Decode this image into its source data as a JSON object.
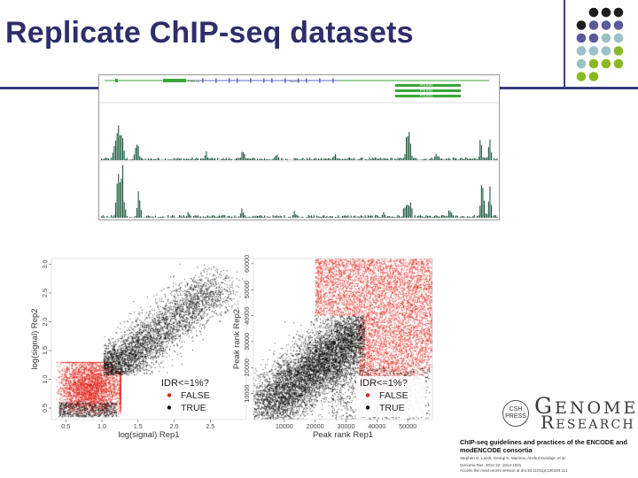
{
  "slide": {
    "title": "Replicate ChIP-seq datasets",
    "accent_color": "#2e2e6a",
    "rule_color": "#3d3d80"
  },
  "genome_browser": {
    "gene_labels": [
      "PHETA",
      "ACO2",
      "POLR3H",
      "POLR3H",
      "POLR3H"
    ],
    "track_color": "#1f5a3f",
    "gene_color": "#3aa53a"
  },
  "scatter_signal": {
    "type": "scatter",
    "xlabel": "log(signal) Rep1",
    "ylabel": "log(signal) Rep2",
    "x_ticks": [
      "0.5",
      "1.0",
      "1.5",
      "2.0",
      "2.5"
    ],
    "y_ticks": [
      "0.5",
      "1.0",
      "1.5",
      "2.0",
      "2.5",
      "3.0"
    ],
    "xlim": [
      0.3,
      3.0
    ],
    "ylim": [
      0.3,
      3.1
    ],
    "legend_title": "IDR<=1%?",
    "legend": [
      {
        "label": "FALSE",
        "color": "#e0241b"
      },
      {
        "label": "TRUE",
        "color": "#000000"
      }
    ]
  },
  "scatter_rank": {
    "type": "scatter",
    "xlabel": "Peak rank Rep1",
    "ylabel": "Peak rank Rep2",
    "x_ticks": [
      "10000",
      "20000",
      "30000",
      "40000",
      "50000"
    ],
    "y_ticks": [
      "10000",
      "20000",
      "30000",
      "40000",
      "50000",
      "60000"
    ],
    "xlim": [
      0,
      58000
    ],
    "ylim": [
      0,
      62000
    ],
    "legend_title": "IDR<=1%?",
    "legend": [
      {
        "label": "FALSE",
        "color": "#e0241b"
      },
      {
        "label": "TRUE",
        "color": "#000000"
      }
    ]
  },
  "reference": {
    "logo_top": "G",
    "logo_word1": "ENOME",
    "logo_word2": "ESEARCH",
    "logo_letter2": "R",
    "badge": "CSH PRESS",
    "title": "ChIP-seq guidelines and practices of the ENCODE and modENCODE consortia",
    "authors": "Stephen G. Landt, Georgi K. Marinov, Anshul Kundaje, et al.",
    "citation": "Genome Res. 2012 22: 1813-1831",
    "access": "Access the most recent version at doi:10.1101/gr.136184.111"
  },
  "palette": [
    "#1e1e1e",
    "#5a5a9a",
    "#9cc0c8",
    "#8ab824"
  ]
}
